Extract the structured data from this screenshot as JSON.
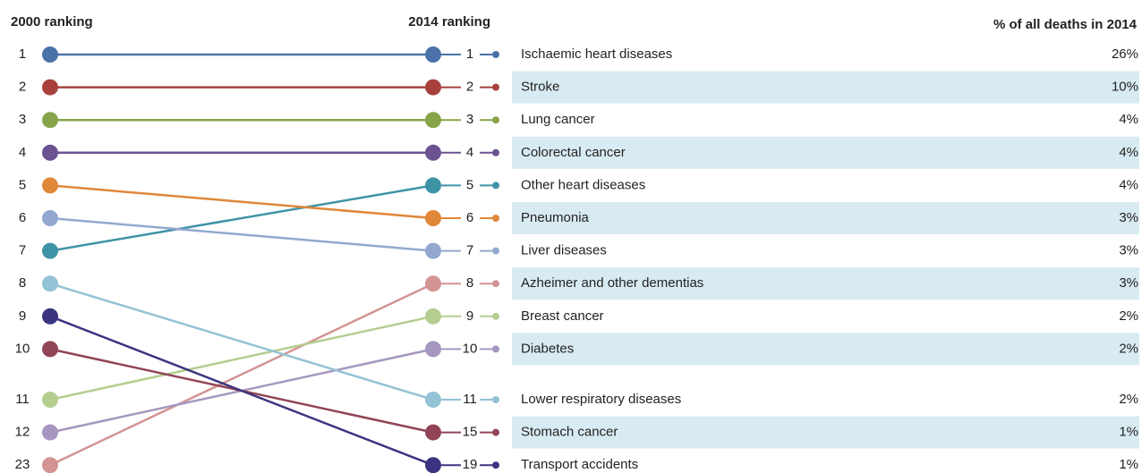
{
  "chart_data": {
    "type": "slope",
    "left_label": "2000 ranking",
    "right_label": "2014 ranking",
    "value_label": "% of all deaths in 2014",
    "series": [
      {
        "name": "Ischaemic heart diseases",
        "color": "#4a72a8",
        "rank_2000": 1,
        "rank_2014": 1,
        "value": 26,
        "value_label": "26%"
      },
      {
        "name": "Stroke",
        "color": "#a8413c",
        "rank_2000": 2,
        "rank_2014": 2,
        "value": 10,
        "value_label": "10%"
      },
      {
        "name": "Lung cancer",
        "color": "#88a44a",
        "rank_2000": 3,
        "rank_2014": 3,
        "value": 4,
        "value_label": "4%"
      },
      {
        "name": "Colorectal cancer",
        "color": "#6b5291",
        "rank_2000": 4,
        "rank_2014": 4,
        "value": 4,
        "value_label": "4%"
      },
      {
        "name": "Other heart diseases",
        "color": "#3f93a6",
        "rank_2000": 7,
        "rank_2014": 5,
        "value": 4,
        "value_label": "4%"
      },
      {
        "name": "Pneumonia",
        "color": "#e0873a",
        "rank_2000": 5,
        "rank_2014": 6,
        "value": 3,
        "value_label": "3%"
      },
      {
        "name": "Liver diseases",
        "color": "#93a8cf",
        "rank_2000": 6,
        "rank_2014": 7,
        "value": 3,
        "value_label": "3%"
      },
      {
        "name": "Azheimer and other dementias",
        "color": "#d49494",
        "rank_2000": 23,
        "rank_2014": 8,
        "value": 3,
        "value_label": "3%"
      },
      {
        "name": "Breast cancer",
        "color": "#b6cd90",
        "rank_2000": 11,
        "rank_2014": 9,
        "value": 2,
        "value_label": "2%"
      },
      {
        "name": "Diabetes",
        "color": "#a597c0",
        "rank_2000": 12,
        "rank_2014": 10,
        "value": 2,
        "value_label": "2%"
      },
      {
        "name": "Lower respiratory diseases",
        "color": "#93c3d4",
        "rank_2000": 8,
        "rank_2014": 11,
        "value": 2,
        "value_label": "2%"
      },
      {
        "name": "Stomach cancer",
        "color": "#914556",
        "rank_2000": 10,
        "rank_2014": 15,
        "value": 1,
        "value_label": "1%"
      },
      {
        "name": "Transport accidents",
        "color": "#3b3480",
        "rank_2000": 9,
        "rank_2014": 19,
        "value": 1,
        "value_label": "1%"
      }
    ]
  }
}
